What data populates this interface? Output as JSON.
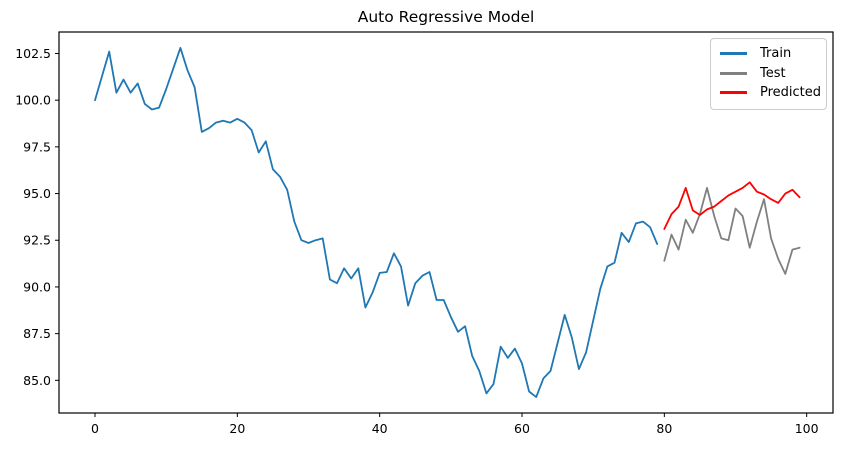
{
  "figure": {
    "title": "Auto Regressive Model",
    "background_color": "#ffffff",
    "axis_color": "#000000"
  },
  "legend": {
    "position": "upper right",
    "items": [
      {
        "label": "Train",
        "color": "#1f77b4"
      },
      {
        "label": "Test",
        "color": "#808080"
      },
      {
        "label": "Predicted",
        "color": "#ff0000"
      }
    ]
  },
  "chart_data": {
    "type": "line",
    "title": "Auto Regressive Model",
    "xlabel": "",
    "ylabel": "",
    "grid": false,
    "legend_position": "upper right",
    "xlim": [
      -5.06,
      103.7
    ],
    "ylim": [
      83.25,
      103.65
    ],
    "x_ticks": [
      0,
      20,
      40,
      60,
      80,
      100
    ],
    "y_ticks": [
      85.0,
      87.5,
      90.0,
      92.5,
      95.0,
      97.5,
      100.0,
      102.5
    ],
    "series": [
      {
        "name": "Train",
        "color": "#1f77b4",
        "x_start": 0,
        "values": [
          100.0,
          101.3,
          102.6,
          100.4,
          101.1,
          100.4,
          100.9,
          99.8,
          99.5,
          99.6,
          100.6,
          101.7,
          102.8,
          101.6,
          100.7,
          98.3,
          98.5,
          98.8,
          98.9,
          98.8,
          99.0,
          98.8,
          98.4,
          97.2,
          97.8,
          96.3,
          95.9,
          95.2,
          93.5,
          92.5,
          92.35,
          92.5,
          92.6,
          90.4,
          90.2,
          91.0,
          90.45,
          91.0,
          88.9,
          89.7,
          90.75,
          90.8,
          91.8,
          91.1,
          89.0,
          90.2,
          90.6,
          90.8,
          89.3,
          89.3,
          88.4,
          87.6,
          87.9,
          86.3,
          85.5,
          84.3,
          84.8,
          86.8,
          86.2,
          86.7,
          85.9,
          84.4,
          84.1,
          85.1,
          85.5,
          87.0,
          88.5,
          87.3,
          85.6,
          86.5,
          88.2,
          89.9,
          91.1,
          91.3,
          92.9,
          92.4,
          93.4,
          93.5,
          93.2,
          92.3
        ]
      },
      {
        "name": "Test",
        "color": "#808080",
        "x_start": 80,
        "values": [
          91.4,
          92.8,
          92.0,
          93.6,
          92.9,
          93.9,
          95.3,
          93.8,
          92.6,
          92.5,
          94.2,
          93.8,
          92.1,
          93.5,
          94.7,
          92.6,
          91.5,
          90.7,
          92.0,
          92.1
        ]
      },
      {
        "name": "Predicted",
        "color": "#ff0000",
        "x_start": 80,
        "values": [
          93.1,
          93.9,
          94.3,
          95.3,
          94.1,
          93.85,
          94.15,
          94.3,
          94.6,
          94.9,
          95.1,
          95.3,
          95.6,
          95.1,
          94.95,
          94.7,
          94.5,
          95.0,
          95.2,
          94.8
        ]
      }
    ]
  }
}
